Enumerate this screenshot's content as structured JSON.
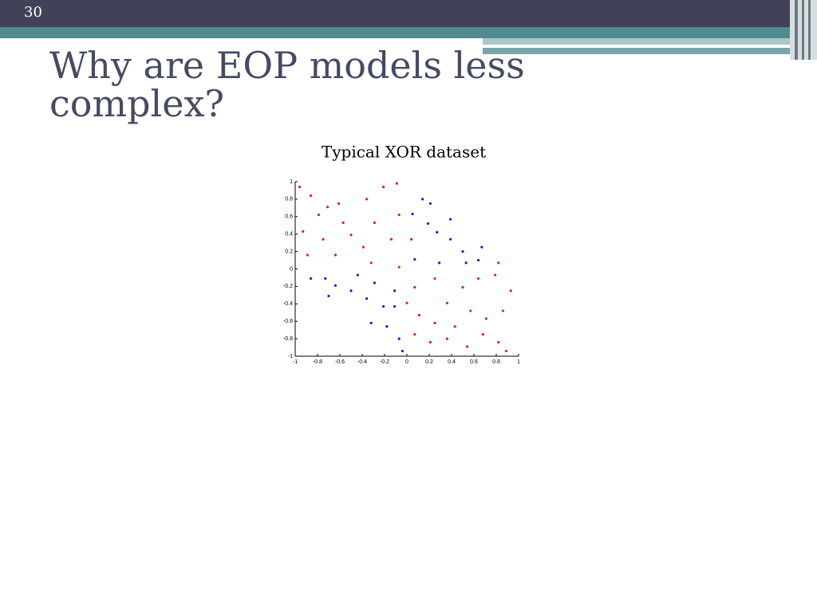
{
  "slide_number": "30",
  "title": "Why are EOP models less complex?",
  "chart_data": {
    "type": "scatter",
    "title": "Typical XOR dataset",
    "xlim": [
      -1,
      1
    ],
    "ylim": [
      -1,
      1
    ],
    "xticks": [
      -1,
      -0.8,
      -0.6,
      -0.4,
      -0.2,
      0,
      0.2,
      0.4,
      0.6,
      0.8,
      1
    ],
    "yticks": [
      -1,
      -0.8,
      -0.6,
      -0.4,
      -0.2,
      0,
      0.2,
      0.4,
      0.6,
      0.8,
      1
    ],
    "series": [
      {
        "color": "#1a1adc",
        "x": [
          0.14,
          0.21,
          0.05,
          0.19,
          0.27,
          0.39,
          0.39,
          0.5,
          0.67,
          0.53,
          0.29,
          0.07,
          0.64,
          -0.86,
          -0.73,
          -0.64,
          -0.7,
          -0.44,
          -0.5,
          -0.29,
          -0.36,
          -0.21,
          -0.11,
          -0.32,
          -0.18,
          -0.07,
          -0.11,
          -0.04
        ],
        "values": [
          0.8,
          0.75,
          0.63,
          0.52,
          0.42,
          0.57,
          0.34,
          0.2,
          0.25,
          0.07,
          0.07,
          0.11,
          0.1,
          -0.11,
          -0.11,
          -0.19,
          -0.31,
          -0.07,
          -0.25,
          -0.16,
          -0.34,
          -0.43,
          -0.43,
          -0.62,
          -0.66,
          -0.8,
          -0.25,
          -0.94
        ]
      },
      {
        "color": "#e02020",
        "x": [
          -0.96,
          -0.86,
          -0.79,
          -0.71,
          -0.61,
          -0.93,
          -0.89,
          -0.75,
          -0.64,
          -0.57,
          -0.5,
          -0.36,
          -0.29,
          -0.21,
          -0.14,
          -0.07,
          -0.09,
          -0.32,
          -0.07,
          0.04,
          -0.39,
          0.07,
          0.25,
          0.36,
          0.5,
          0.64,
          0.79,
          0.93,
          0.86,
          0.71,
          0.57,
          0.43,
          0.25,
          0.11,
          0.07,
          0.21,
          0.36,
          0.54,
          0.68,
          0.82,
          0.89,
          0.0,
          0.82
        ],
        "values": [
          0.94,
          0.84,
          0.62,
          0.71,
          0.75,
          0.43,
          0.16,
          0.34,
          0.16,
          0.53,
          0.39,
          0.8,
          0.53,
          0.94,
          0.34,
          0.62,
          0.98,
          0.07,
          0.02,
          0.34,
          0.25,
          -0.21,
          -0.11,
          -0.39,
          -0.21,
          -0.11,
          -0.07,
          -0.25,
          -0.48,
          -0.57,
          -0.48,
          -0.66,
          -0.62,
          -0.53,
          -0.75,
          -0.84,
          -0.8,
          -0.89,
          -0.75,
          -0.84,
          -0.94,
          -0.39,
          0.07
        ]
      }
    ]
  }
}
